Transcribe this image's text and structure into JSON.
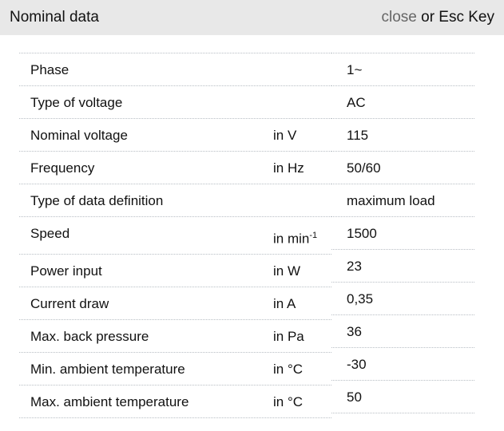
{
  "header": {
    "title": "Nominal data",
    "close_label": "close",
    "esc_hint": " or Esc Key"
  },
  "rows": [
    {
      "label": "Phase",
      "unit": "",
      "value": "1~"
    },
    {
      "label": "Type of voltage",
      "unit": "",
      "value": "AC"
    },
    {
      "label": "Nominal voltage",
      "unit": "in V",
      "value": "115"
    },
    {
      "label": "Frequency",
      "unit": "in Hz",
      "value": "50/60"
    },
    {
      "label": "Type of data definition",
      "unit": "",
      "value": "maximum load"
    },
    {
      "label": "Speed",
      "unit": "in min",
      "unit_sup": "-1",
      "value": "1500"
    },
    {
      "label": "Power input",
      "unit": "in W",
      "value": "23"
    },
    {
      "label": "Current draw",
      "unit": "in A",
      "value": "0,35"
    },
    {
      "label": "Max. back pressure",
      "unit": "in Pa",
      "value": "36"
    },
    {
      "label": "Min. ambient temperature",
      "unit": "in °C",
      "value": "-30"
    },
    {
      "label": "Max. ambient temperature",
      "unit": "in °C",
      "value": "50"
    }
  ]
}
